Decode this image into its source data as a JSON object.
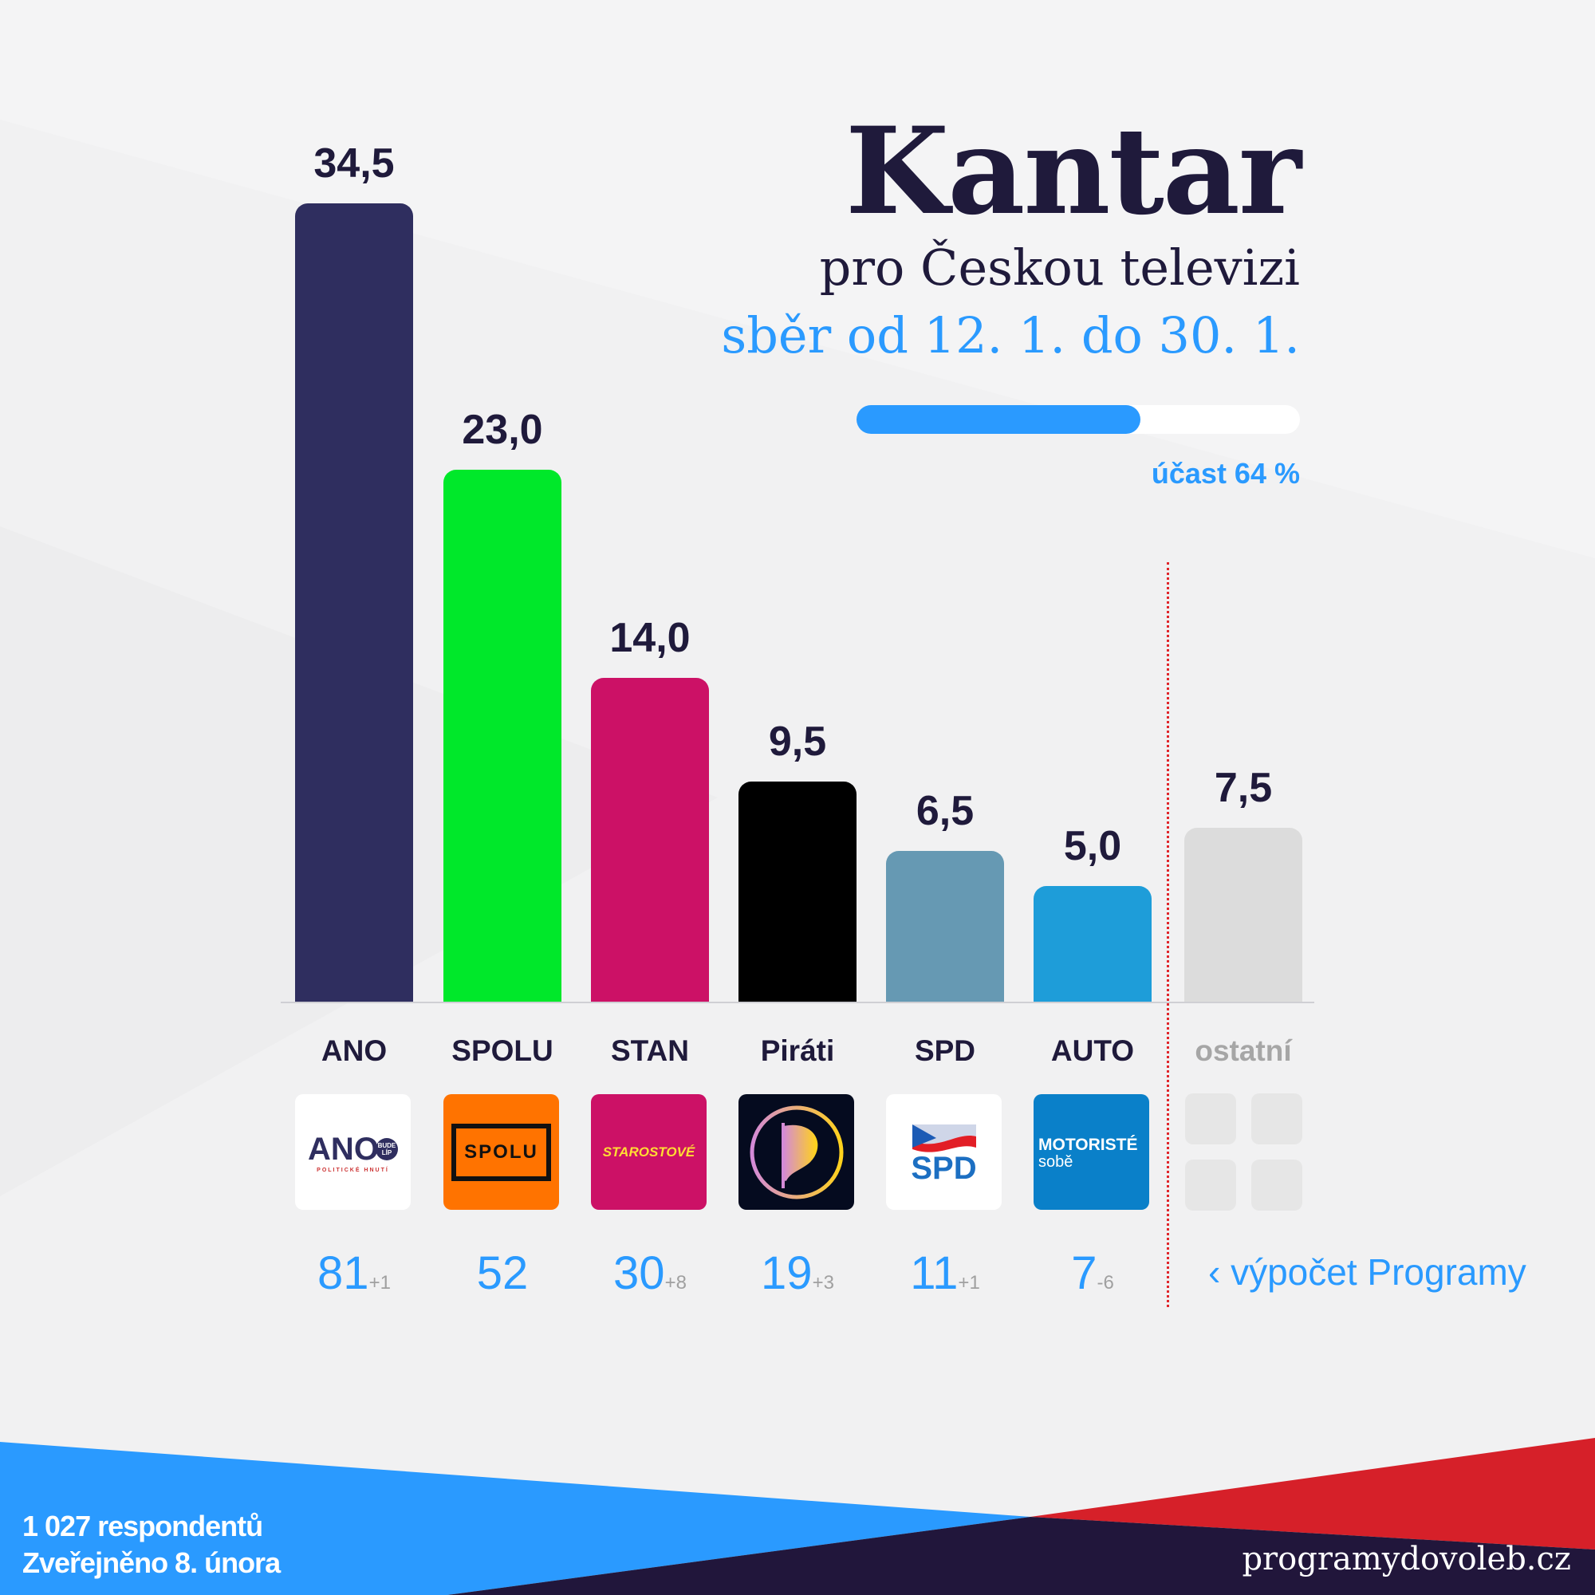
{
  "header": {
    "title": "Kantar",
    "subtitle": "pro Českou televizi",
    "period": "sběr od 12. 1. do 30. 1.",
    "turnout_label": "účast 64 %",
    "turnout_value": 64
  },
  "chart_data": {
    "type": "bar",
    "title": "Kantar",
    "categories": [
      "ANO",
      "SPOLU",
      "STAN",
      "Piráti",
      "SPD",
      "AUTO",
      "ostatní"
    ],
    "values": [
      34.5,
      23.0,
      14.0,
      9.5,
      6.5,
      5.0,
      7.5
    ],
    "value_labels": [
      "34,5",
      "23,0",
      "14,0",
      "9,5",
      "6,5",
      "5,0",
      "7,5"
    ],
    "colors": [
      "#2f2e5f",
      "#00e82a",
      "#cc1166",
      "#000000",
      "#6699b3",
      "#1e9dd9",
      "#dcdcdc"
    ],
    "ylim": [
      0,
      34.5
    ],
    "grid": false,
    "unit": "%"
  },
  "logos": {
    "ano": {
      "main": "ANO",
      "badge": "BUDE LÍP",
      "sub": "POLITICKÉ HNUTÍ"
    },
    "spolu": "SPOLU",
    "stan": "STAROSTOVÉ",
    "spd": "SPD",
    "auto": {
      "line1": "MOTORISTÉ",
      "line2": "sobě"
    }
  },
  "seats": [
    {
      "value": "81",
      "change": "+1"
    },
    {
      "value": "52",
      "change": ""
    },
    {
      "value": "30",
      "change": "+8"
    },
    {
      "value": "19",
      "change": "+3"
    },
    {
      "value": "11",
      "change": "+1"
    },
    {
      "value": "7",
      "change": "-6"
    }
  ],
  "calc_label": "‹  výpočet Programy",
  "footer": {
    "respondents": "1 027 respondentů",
    "published": "Zveřejněno 8. února",
    "site": "programydovoleb.cz"
  },
  "theme": {
    "blue": "#2a9aff",
    "red": "#d62029",
    "navy": "#21163b"
  }
}
